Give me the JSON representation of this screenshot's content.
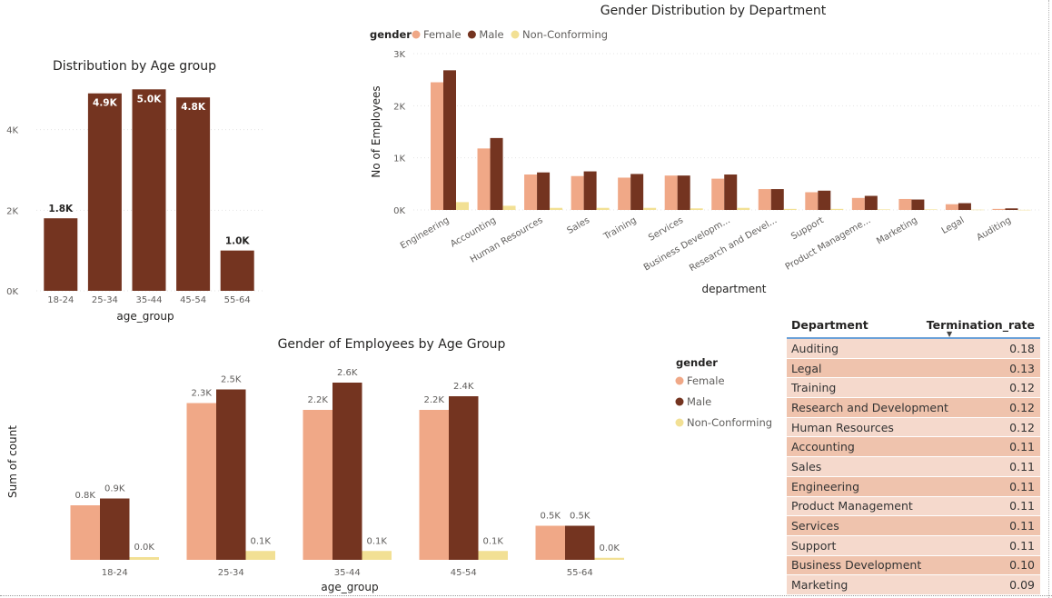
{
  "colors": {
    "female": "#f0a887",
    "male": "#743420",
    "nonconforming": "#f2e094",
    "age_bar": "#743420"
  },
  "chart_data": [
    {
      "id": "age",
      "type": "bar",
      "title": "Distribution by Age group",
      "xlabel": "age_group",
      "ylabel": "",
      "categories": [
        "18-24",
        "25-34",
        "35-44",
        "45-54",
        "55-64"
      ],
      "values": [
        1800,
        4900,
        5000,
        4800,
        1000
      ],
      "data_labels": [
        "1.8K",
        "4.9K",
        "5.0K",
        "4.8K",
        "1.0K"
      ],
      "yticks": [
        0,
        2000,
        4000
      ],
      "ytick_labels": [
        "0K",
        "2K",
        "4K"
      ],
      "ylim": [
        0,
        5300
      ],
      "grid": true
    },
    {
      "id": "dept",
      "type": "bar",
      "title": "Gender Distribution by Department",
      "xlabel": "department",
      "ylabel": "No of Employees",
      "legend_title": "gender",
      "legend_position": "top-left",
      "categories": [
        "Engineering",
        "Accounting",
        "Human Resources",
        "Sales",
        "Training",
        "Services",
        "Business Developm...",
        "Research and Devel...",
        "Support",
        "Product Manageme...",
        "Marketing",
        "Legal",
        "Auditing"
      ],
      "series": [
        {
          "name": "Female",
          "values": [
            2450,
            1180,
            680,
            650,
            620,
            660,
            600,
            400,
            340,
            230,
            210,
            110,
            20
          ]
        },
        {
          "name": "Male",
          "values": [
            2680,
            1380,
            720,
            740,
            690,
            660,
            680,
            400,
            370,
            270,
            200,
            130,
            30
          ]
        },
        {
          "name": "Non-Conforming",
          "values": [
            150,
            80,
            40,
            40,
            40,
            30,
            40,
            20,
            20,
            10,
            10,
            5,
            2
          ]
        }
      ],
      "yticks": [
        0,
        1000,
        2000,
        3000
      ],
      "ytick_labels": [
        "0K",
        "1K",
        "2K",
        "3K"
      ],
      "ylim": [
        0,
        3000
      ],
      "grid": true
    },
    {
      "id": "gender_age",
      "type": "bar",
      "title": "Gender of Employees by Age Group",
      "xlabel": "age_group",
      "ylabel": "Sum of count",
      "legend_title": "gender",
      "legend_position": "right",
      "categories": [
        "18-24",
        "25-34",
        "35-44",
        "45-54",
        "55-64"
      ],
      "series": [
        {
          "name": "Female",
          "values": [
            800,
            2300,
            2200,
            2200,
            500
          ],
          "labels": [
            "0.8K",
            "2.3K",
            "2.2K",
            "2.2K",
            "0.5K"
          ]
        },
        {
          "name": "Male",
          "values": [
            900,
            2500,
            2600,
            2400,
            500
          ],
          "labels": [
            "0.9K",
            "2.5K",
            "2.6K",
            "2.4K",
            "0.5K"
          ]
        },
        {
          "name": "Non-Conforming",
          "values": [
            40,
            130,
            130,
            130,
            30
          ],
          "labels": [
            "0.0K",
            "0.1K",
            "0.1K",
            "0.1K",
            "0.0K"
          ]
        }
      ],
      "ylim": [
        0,
        2600
      ],
      "grid": false
    },
    {
      "id": "termination",
      "type": "table",
      "columns": [
        "Department",
        "Termination_rate"
      ],
      "sort_indicator": "▼",
      "rows": [
        [
          "Auditing",
          "0.18"
        ],
        [
          "Legal",
          "0.13"
        ],
        [
          "Training",
          "0.12"
        ],
        [
          "Research and Development",
          "0.12"
        ],
        [
          "Human Resources",
          "0.12"
        ],
        [
          "Accounting",
          "0.11"
        ],
        [
          "Sales",
          "0.11"
        ],
        [
          "Engineering",
          "0.11"
        ],
        [
          "Product Management",
          "0.11"
        ],
        [
          "Services",
          "0.11"
        ],
        [
          "Support",
          "0.11"
        ],
        [
          "Business Development",
          "0.10"
        ],
        [
          "Marketing",
          "0.09"
        ]
      ]
    }
  ]
}
